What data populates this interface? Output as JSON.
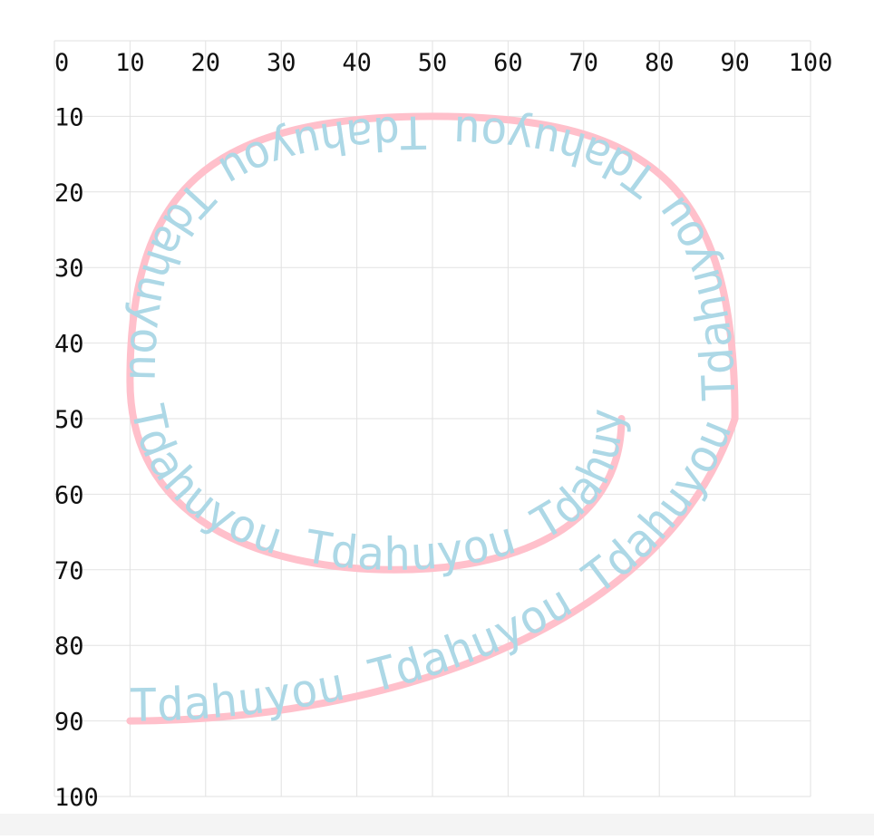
{
  "grid": {
    "x_ticks": [
      "0",
      "10",
      "20",
      "30",
      "40",
      "50",
      "60",
      "70",
      "80",
      "90",
      "100"
    ],
    "y_ticks": [
      "10",
      "20",
      "30",
      "40",
      "50",
      "60",
      "70",
      "80",
      "90",
      "100"
    ],
    "x_range": [
      0,
      100
    ],
    "y_range": [
      0,
      100
    ]
  },
  "spiral": {
    "path_points_description": "M 10 90 C 40 90 80 80 90 50 C 90 20 80 10 50 10 C 20 10 10 20 10 45 C 10 65 30 70 45 70 C 60 70 75 65 75 50",
    "stroke_color": "#ffc0cb",
    "text_color": "#add8e6",
    "repeated_text": "Tdahuyou Tdahuyou Tdahuyou Tdahuyou Tdahuyou Tdahuyou Tdahuyou Tdahuyou Tdahuyou Tdahuyou Tdahuyou Tdahuyou"
  },
  "colors": {
    "grid": "#e2e2e2",
    "tick_text": "#111111",
    "curve": "#ffc0cb",
    "curve_text": "#add8e6"
  }
}
